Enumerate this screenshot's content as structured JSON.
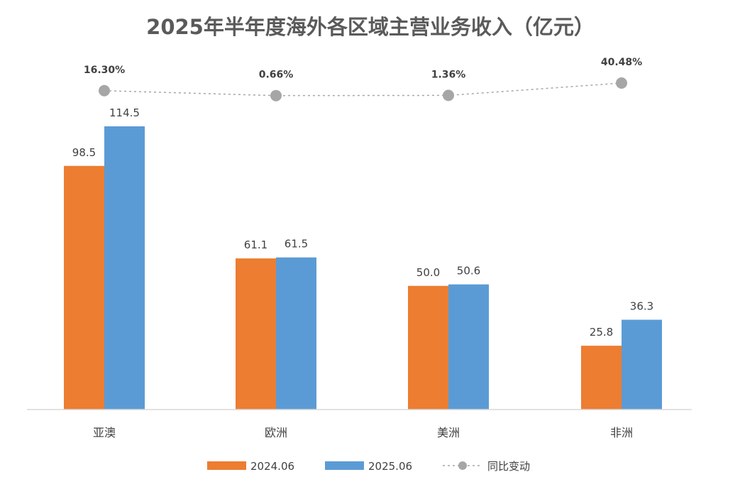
{
  "chart_data": {
    "type": "bar",
    "title": "2025年半年度海外各区域主营业务收入（亿元）",
    "categories": [
      "亚澳",
      "欧洲",
      "美洲",
      "非洲"
    ],
    "series": [
      {
        "name": "2024.06",
        "color": "#ed7d31",
        "values": [
          98.5,
          61.1,
          50.0,
          25.8
        ],
        "labels": [
          "98.5",
          "61.1",
          "50.0",
          "25.8"
        ]
      },
      {
        "name": "2025.06",
        "color": "#5b9bd5",
        "values": [
          114.5,
          61.5,
          50.6,
          36.3
        ],
        "labels": [
          "114.5",
          "61.5",
          "50.6",
          "36.3"
        ]
      }
    ],
    "line_series": {
      "name": "同比变动",
      "type": "line",
      "color": "#a6a6a6",
      "values": [
        16.3,
        0.66,
        1.36,
        40.48
      ],
      "labels": [
        "16.30%",
        "0.66%",
        "1.36%",
        "40.48%"
      ]
    },
    "ylim": [
      0,
      114.5
    ],
    "grid": false,
    "legend": "bottom-center",
    "xlabel": "",
    "ylabel": ""
  }
}
